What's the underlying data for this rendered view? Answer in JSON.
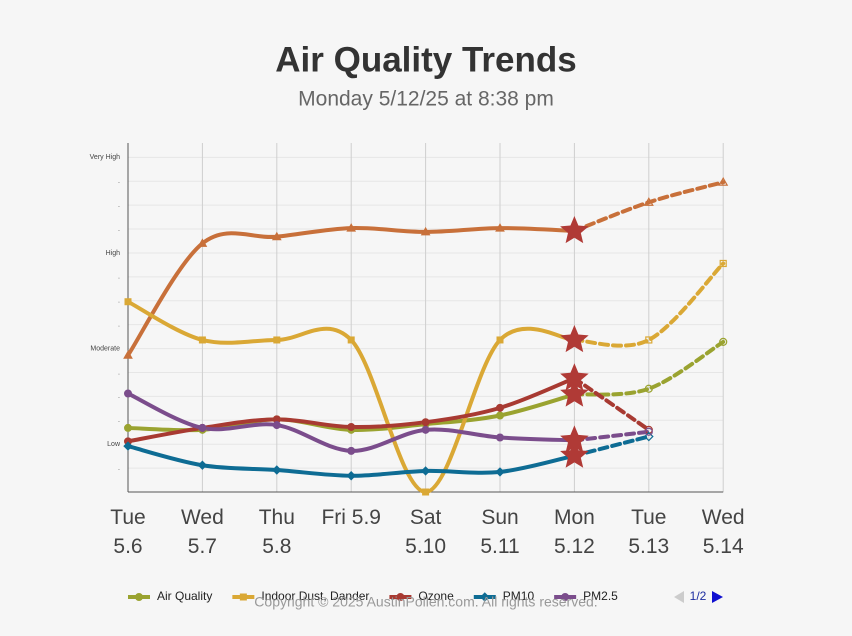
{
  "chart_data": {
    "type": "line",
    "title": "Air Quality Trends",
    "subtitle": "Monday 5/12/25 at 8:38 pm",
    "categories": [
      "Tue\n5.6",
      "Wed\n5.7",
      "Thu\n5.8",
      "Fri 5.9",
      "Sat\n5.10",
      "Sun\n5.11",
      "Mon\n5.12",
      "Tue\n5.13",
      "Wed\n5.14"
    ],
    "ylim": [
      0.5,
      4.15
    ],
    "yticks": [
      {
        "value": 0.75,
        "label": "."
      },
      {
        "value": 1,
        "label": "Low"
      },
      {
        "value": 1.25,
        "label": "."
      },
      {
        "value": 1.5,
        "label": "."
      },
      {
        "value": 1.75,
        "label": "."
      },
      {
        "value": 2,
        "label": "Moderate"
      },
      {
        "value": 2.25,
        "label": "."
      },
      {
        "value": 2.5,
        "label": "."
      },
      {
        "value": 2.75,
        "label": "."
      },
      {
        "value": 3,
        "label": "High"
      },
      {
        "value": 3.25,
        "label": "."
      },
      {
        "value": 3.5,
        "label": "."
      },
      {
        "value": 3.75,
        "label": "."
      },
      {
        "value": 4,
        "label": "Very High"
      }
    ],
    "grid": true,
    "forecast_start": 6,
    "series": [
      {
        "color": "#c8703a",
        "marker": "triangle",
        "values": [
          1.93,
          3.1,
          3.17,
          3.26,
          3.22,
          3.26,
          3.23,
          3.53,
          3.74
        ]
      },
      {
        "name": "Air Quality",
        "color": "#9aa330",
        "marker": "circle",
        "values": [
          1.17,
          1.15,
          1.26,
          1.15,
          1.21,
          1.3,
          1.52,
          1.58,
          2.07
        ]
      },
      {
        "name": "Indoor Dust, Dander",
        "color": "#daa835",
        "marker": "square",
        "values": [
          2.49,
          2.09,
          2.09,
          2.09,
          0.5,
          2.09,
          2.09,
          2.09,
          2.89
        ]
      },
      {
        "name": "Ozone",
        "color": "#a83a32",
        "marker": "circle",
        "values": [
          1.03,
          1.17,
          1.26,
          1.18,
          1.23,
          1.38,
          1.69,
          1.15,
          null
        ]
      },
      {
        "name": "PM10",
        "color": "#0e6c94",
        "marker": "diamond",
        "values": [
          0.98,
          0.78,
          0.73,
          0.67,
          0.72,
          0.71,
          0.88,
          1.08,
          null
        ]
      },
      {
        "name": "PM2.5",
        "color": "#7b4d8c",
        "marker": "circle",
        "values": [
          1.53,
          1.17,
          1.2,
          0.93,
          1.15,
          1.07,
          1.04,
          1.13,
          null
        ]
      }
    ],
    "page": "1/2",
    "footer": "Copyright © 2025 AustinPollen.com.  All rights reserved."
  }
}
